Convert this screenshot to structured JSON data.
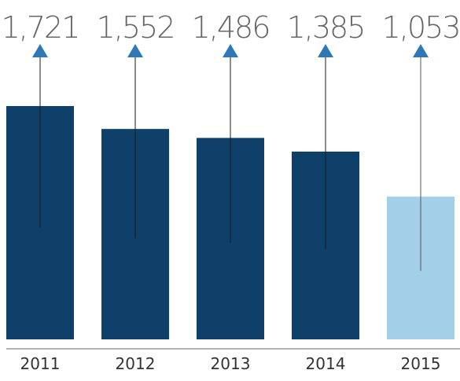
{
  "chart_data": {
    "type": "bar",
    "categories": [
      "2011",
      "2012",
      "2013",
      "2014",
      "2015"
    ],
    "values": [
      1721,
      1552,
      1486,
      1385,
      1053
    ],
    "value_labels": [
      "1,721",
      "1,552",
      "1,486",
      "1,385",
      "1,053"
    ],
    "title": "",
    "xlabel": "",
    "ylabel": "",
    "ylim": [
      0,
      1721
    ],
    "grid": false,
    "legend": "none",
    "colors": {
      "bar": "#0e406a",
      "highlight_bar": "#a3cfe8",
      "arrow": "#2e78b7",
      "axis": "#999999",
      "label_text": "#666666",
      "category_text": "#333333"
    },
    "highlight_category": "2015"
  }
}
